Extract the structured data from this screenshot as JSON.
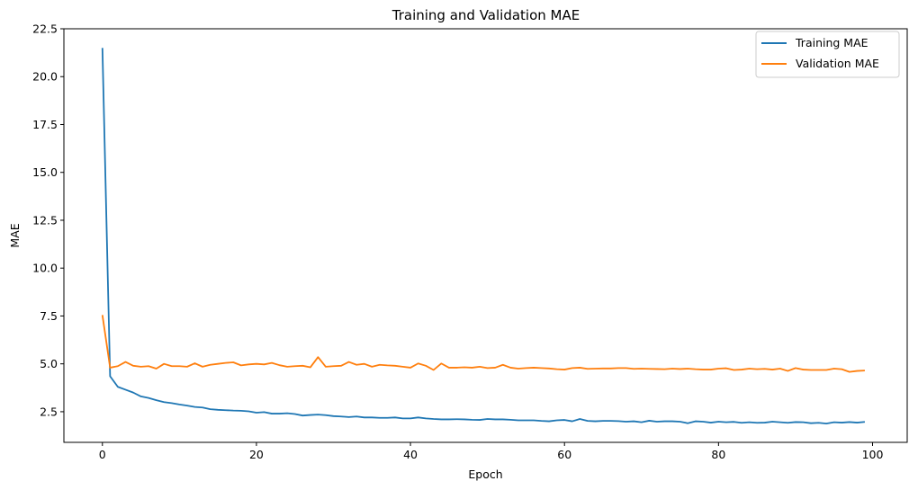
{
  "chart_data": {
    "type": "line",
    "title": "Training and Validation MAE",
    "xlabel": "Epoch",
    "ylabel": "MAE",
    "xlim": [
      -5,
      104.5
    ],
    "ylim": [
      0.9,
      22.5
    ],
    "xticks": [
      0,
      20,
      40,
      60,
      80,
      100
    ],
    "yticks": [
      2.5,
      5.0,
      7.5,
      10.0,
      12.5,
      15.0,
      17.5,
      20.0,
      22.5
    ],
    "xtick_labels": [
      "0",
      "20",
      "40",
      "60",
      "80",
      "100"
    ],
    "ytick_labels": [
      "2.5",
      "5.0",
      "7.5",
      "10.0",
      "12.5",
      "15.0",
      "17.5",
      "20.0",
      "22.5"
    ],
    "grid": false,
    "legend_position": "top-right",
    "x": [
      0,
      1,
      2,
      3,
      4,
      5,
      6,
      7,
      8,
      9,
      10,
      11,
      12,
      13,
      14,
      15,
      16,
      17,
      18,
      19,
      20,
      21,
      22,
      23,
      24,
      25,
      26,
      27,
      28,
      29,
      30,
      31,
      32,
      33,
      34,
      35,
      36,
      37,
      38,
      39,
      40,
      41,
      42,
      43,
      44,
      45,
      46,
      47,
      48,
      49,
      50,
      51,
      52,
      53,
      54,
      55,
      56,
      57,
      58,
      59,
      60,
      61,
      62,
      63,
      64,
      65,
      66,
      67,
      68,
      69,
      70,
      71,
      72,
      73,
      74,
      75,
      76,
      77,
      78,
      79,
      80,
      81,
      82,
      83,
      84,
      85,
      86,
      87,
      88,
      89,
      90,
      91,
      92,
      93,
      94,
      95,
      96,
      97,
      98,
      99
    ],
    "series": [
      {
        "name": "Training MAE",
        "color": "#1f77b4",
        "values": [
          21.5,
          4.35,
          3.8,
          3.65,
          3.5,
          3.3,
          3.22,
          3.1,
          3.0,
          2.95,
          2.88,
          2.82,
          2.75,
          2.72,
          2.63,
          2.6,
          2.58,
          2.56,
          2.55,
          2.52,
          2.45,
          2.48,
          2.4,
          2.4,
          2.42,
          2.38,
          2.3,
          2.33,
          2.35,
          2.32,
          2.27,
          2.25,
          2.22,
          2.25,
          2.2,
          2.2,
          2.18,
          2.18,
          2.2,
          2.15,
          2.15,
          2.2,
          2.15,
          2.12,
          2.1,
          2.1,
          2.11,
          2.1,
          2.08,
          2.07,
          2.12,
          2.1,
          2.1,
          2.08,
          2.05,
          2.05,
          2.05,
          2.02,
          2.0,
          2.05,
          2.07,
          2.0,
          2.12,
          2.02,
          2.0,
          2.02,
          2.02,
          2.01,
          1.98,
          2.0,
          1.95,
          2.03,
          1.98,
          2.0,
          2.0,
          1.98,
          1.9,
          2.0,
          1.98,
          1.93,
          1.98,
          1.95,
          1.97,
          1.92,
          1.95,
          1.92,
          1.93,
          1.98,
          1.95,
          1.92,
          1.96,
          1.95,
          1.9,
          1.92,
          1.88,
          1.95,
          1.93,
          1.96,
          1.93,
          1.97
        ]
      },
      {
        "name": "Validation MAE",
        "color": "#ff7f0e",
        "values": [
          7.55,
          4.8,
          4.88,
          5.1,
          4.9,
          4.85,
          4.88,
          4.75,
          5.0,
          4.88,
          4.88,
          4.85,
          5.03,
          4.85,
          4.95,
          5.0,
          5.05,
          5.08,
          4.92,
          4.97,
          5.0,
          4.97,
          5.05,
          4.93,
          4.85,
          4.88,
          4.9,
          4.82,
          5.35,
          4.85,
          4.88,
          4.9,
          5.1,
          4.95,
          5.0,
          4.85,
          4.95,
          4.92,
          4.9,
          4.85,
          4.8,
          5.02,
          4.9,
          4.68,
          5.02,
          4.8,
          4.8,
          4.82,
          4.8,
          4.85,
          4.78,
          4.8,
          4.95,
          4.8,
          4.75,
          4.78,
          4.8,
          4.78,
          4.76,
          4.72,
          4.7,
          4.78,
          4.8,
          4.74,
          4.75,
          4.76,
          4.76,
          4.78,
          4.78,
          4.74,
          4.75,
          4.74,
          4.73,
          4.72,
          4.75,
          4.73,
          4.75,
          4.72,
          4.7,
          4.7,
          4.75,
          4.77,
          4.68,
          4.7,
          4.75,
          4.72,
          4.74,
          4.7,
          4.75,
          4.63,
          4.78,
          4.7,
          4.68,
          4.68,
          4.68,
          4.75,
          4.72,
          4.58,
          4.63,
          4.65
        ]
      }
    ]
  }
}
